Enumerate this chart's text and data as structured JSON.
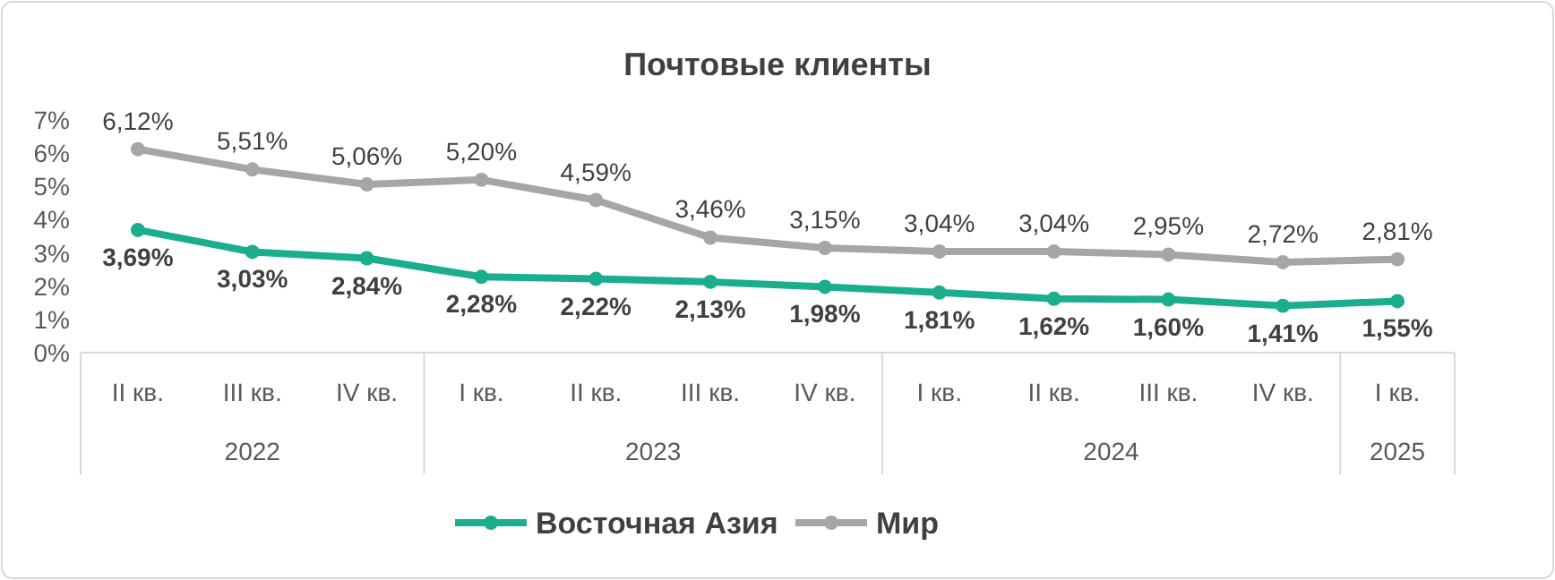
{
  "chart_data": {
    "type": "line",
    "title": "Почтовые клиенты",
    "categories": [
      "II кв.",
      "III кв.",
      "IV кв.",
      "I кв.",
      "II кв.",
      "III кв.",
      "IV кв.",
      "I кв.",
      "II кв.",
      "III кв.",
      "IV кв.",
      "I кв."
    ],
    "series": [
      {
        "name": "Восточная Азия",
        "color": "#1aae8f",
        "values": [
          3.69,
          3.03,
          2.84,
          2.28,
          2.22,
          2.13,
          1.98,
          1.81,
          1.62,
          1.6,
          1.41,
          1.55
        ],
        "value_labels": [
          "3,69%",
          "3,03%",
          "2,84%",
          "2,28%",
          "2,22%",
          "2,13%",
          "1,98%",
          "1,81%",
          "1,62%",
          "1,60%",
          "1,41%",
          "1,55%"
        ]
      },
      {
        "name": "Мир",
        "color": "#a6a6a6",
        "values": [
          6.12,
          5.51,
          5.06,
          5.2,
          4.59,
          3.46,
          3.15,
          3.04,
          3.04,
          2.95,
          2.72,
          2.81
        ],
        "value_labels": [
          "6,12%",
          "5,51%",
          "5,06%",
          "5,20%",
          "4,59%",
          "3,46%",
          "3,15%",
          "3,04%",
          "3,04%",
          "2,95%",
          "2,72%",
          "2,81%"
        ]
      }
    ],
    "annotations": [
      "2022",
      "2023",
      "2024",
      "2025"
    ],
    "ylim": [
      0,
      7
    ],
    "yticks": [
      {
        "value": 0,
        "label": "0%"
      },
      {
        "value": 1,
        "label": "1%"
      },
      {
        "value": 2,
        "label": "2%"
      },
      {
        "value": 3,
        "label": "3%"
      },
      {
        "value": 4,
        "label": "4%"
      },
      {
        "value": 5,
        "label": "5%"
      },
      {
        "value": 6,
        "label": "6%"
      },
      {
        "value": 7,
        "label": "7%"
      }
    ],
    "marker": "circle",
    "line_style": "solid",
    "grid": false,
    "legend": "bottom"
  }
}
